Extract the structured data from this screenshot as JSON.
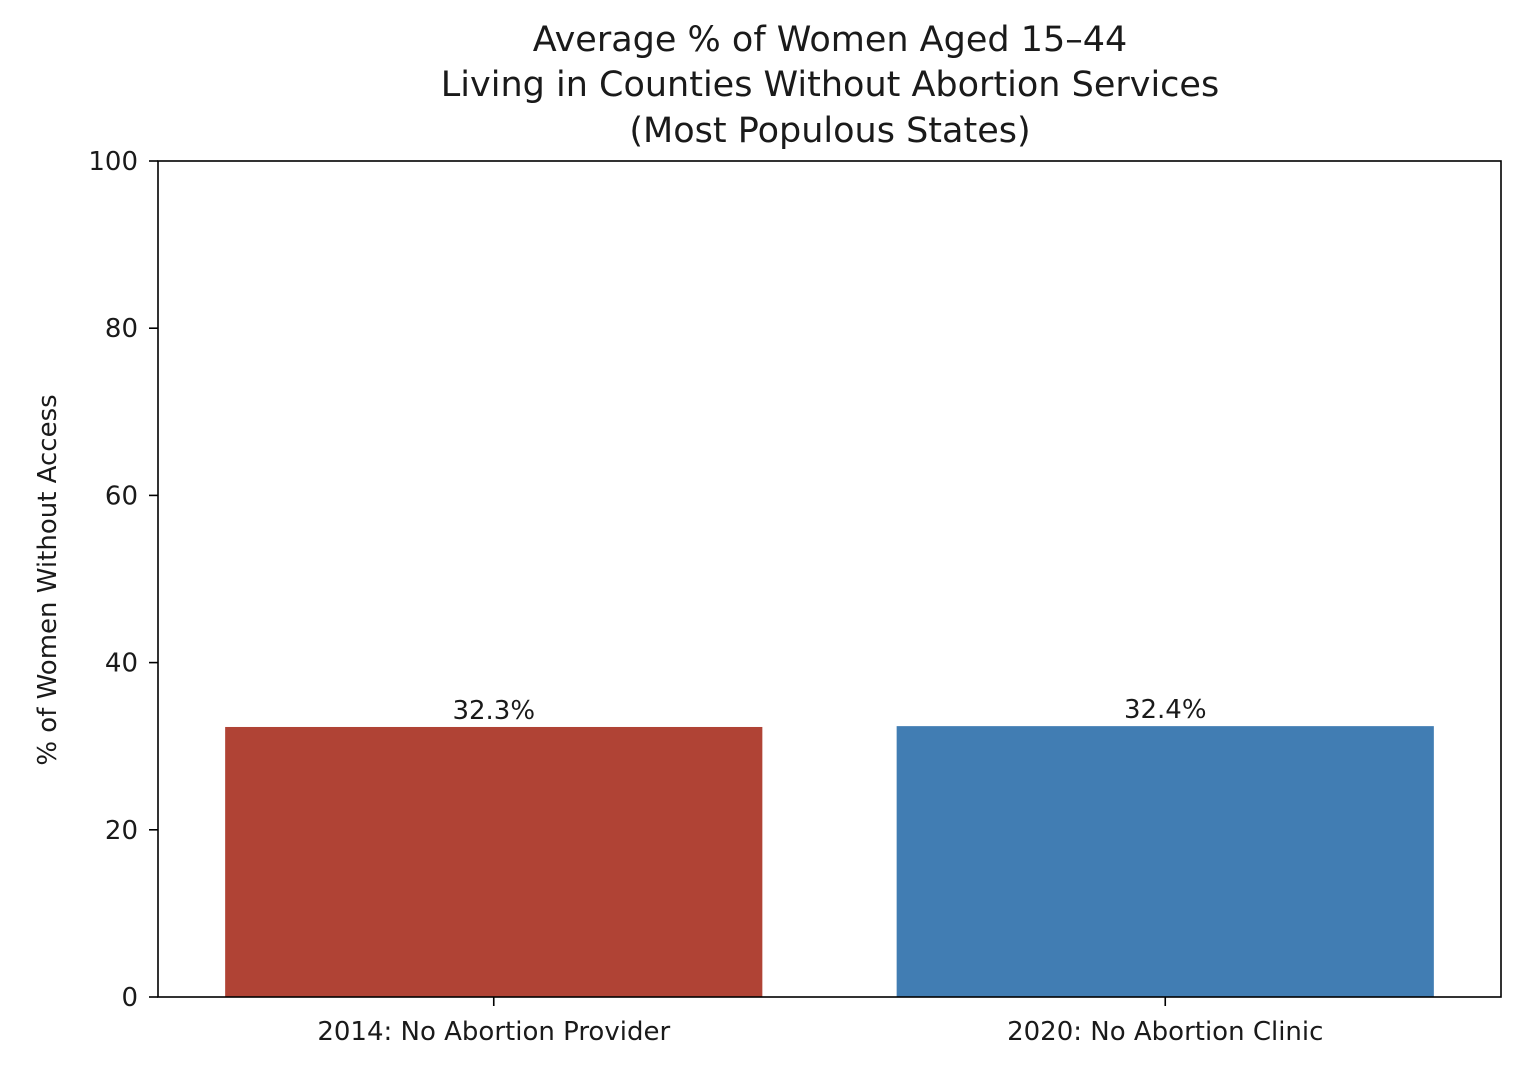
{
  "chart_data": {
    "type": "bar",
    "title_lines": [
      "Average % of Women Aged 15–44",
      "Living in Counties Without Abortion Services",
      "(Most Populous States)"
    ],
    "xlabel": "",
    "ylabel": "% of Women Without Access",
    "categories": [
      "2014: No Abortion Provider",
      "2020: No Abortion Clinic"
    ],
    "values": [
      32.3,
      32.4
    ],
    "data_labels": [
      "32.3%",
      "32.4%"
    ],
    "colors": [
      "#b04335",
      "#417db3"
    ],
    "ylim": [
      0,
      100
    ],
    "yticks": [
      0,
      20,
      40,
      60,
      80,
      100
    ],
    "grid": false,
    "legend": "none"
  }
}
